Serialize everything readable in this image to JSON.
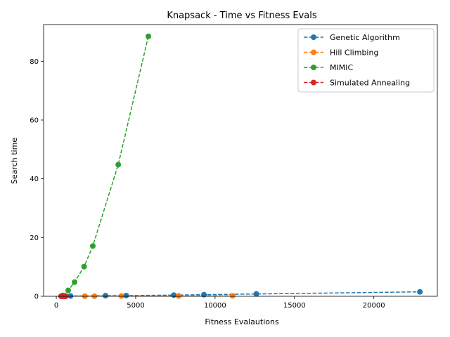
{
  "chart_data": {
    "type": "line",
    "title": "Knapsack - Time vs Fitness Evals",
    "xlabel": "Fitness Evalautions",
    "ylabel": "Search time",
    "xlim": [
      -800,
      24000
    ],
    "ylim": [
      0,
      92.5
    ],
    "xticks": [
      0,
      5000,
      10000,
      15000,
      20000
    ],
    "yticks": [
      0,
      20,
      40,
      60,
      80
    ],
    "legend_position": "top-right",
    "grid": false,
    "series": [
      {
        "name": "Genetic Algorithm",
        "color": "#1f77b4",
        "x": [
          400,
          900,
          3100,
          4400,
          7400,
          9300,
          12600,
          22900
        ],
        "y": [
          0.05,
          0.1,
          0.2,
          0.25,
          0.4,
          0.55,
          0.8,
          1.5
        ]
      },
      {
        "name": "Hill Climbing",
        "color": "#ff7f0e",
        "x": [
          450,
          600,
          1800,
          2400,
          4100,
          7700,
          11100
        ],
        "y": [
          0.02,
          0.02,
          0.03,
          0.04,
          0.08,
          0.12,
          0.18
        ]
      },
      {
        "name": "MIMIC",
        "color": "#2ca02c",
        "x": [
          400,
          750,
          1150,
          1750,
          2300,
          3900,
          5800
        ],
        "y": [
          0.3,
          2.0,
          4.8,
          10.1,
          17.1,
          44.8,
          88.5
        ]
      },
      {
        "name": "Simulated Annealing",
        "color": "#d62728",
        "x": [
          300,
          380,
          450,
          520,
          600
        ],
        "y": [
          0.01,
          0.01,
          0.02,
          0.02,
          0.03
        ]
      }
    ]
  }
}
